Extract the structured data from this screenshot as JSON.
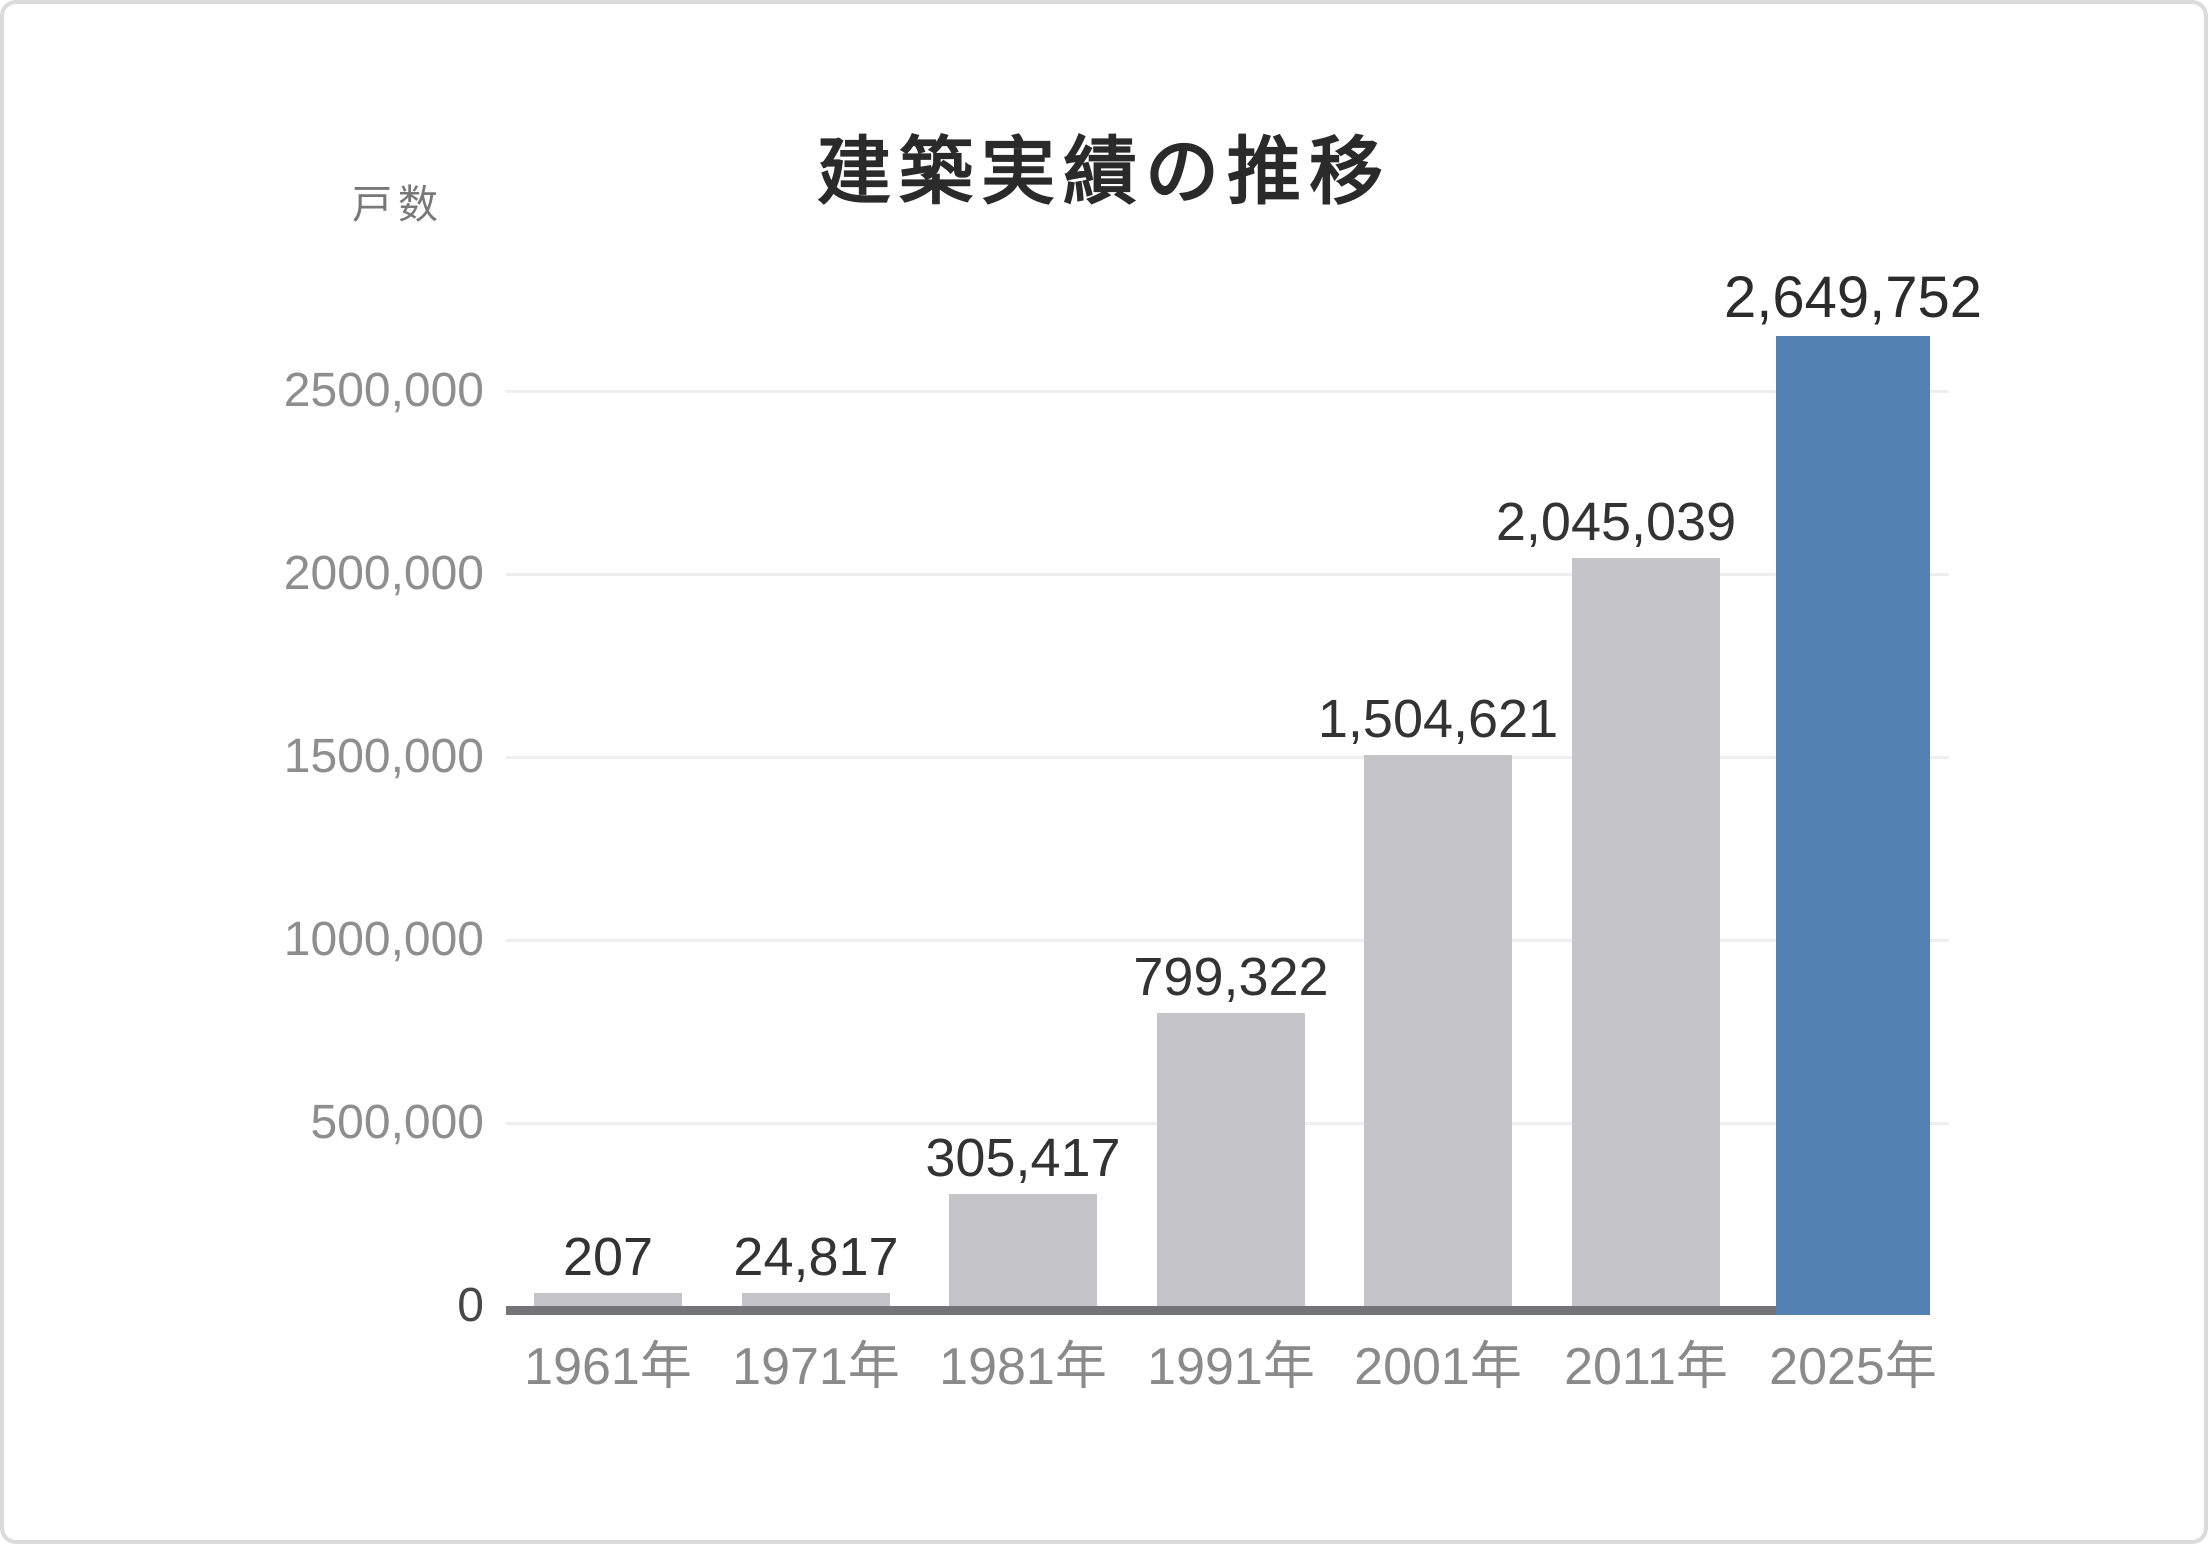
{
  "chart_data": {
    "type": "bar",
    "title": "建築実績の推移",
    "ylabel": "戸数",
    "xlabel": "",
    "categories": [
      "1961年",
      "1971年",
      "1981年",
      "1991年",
      "2001年",
      "2011年",
      "2025年"
    ],
    "values": [
      207,
      24817,
      305417,
      799322,
      1504621,
      2045039,
      2649752
    ],
    "data_labels": [
      "207",
      "24,817",
      "305,417",
      "799,322",
      "1,504,621",
      "2,045,039",
      "2,649,752"
    ],
    "y_tick_labels": [
      "0",
      "500,000",
      "1000,000",
      "1500,000",
      "2000,000",
      "2500,000"
    ],
    "y_tick_values": [
      0,
      500000,
      1000000,
      1500000,
      2000000,
      2500000
    ],
    "ylim": [
      0,
      2800000
    ],
    "grid": true,
    "legend": "none",
    "highlight_index": 6,
    "highlight_category": "2025年",
    "colors": {
      "bar": "#c5c5c7",
      "bar_highlight": "#5381b2",
      "axis_line": "#747476",
      "gridline": "#eeeeee",
      "title_text": "#2a2a2a",
      "data_label_text": "#333333",
      "y_tick_text": "#8e8e8e",
      "zero_tick_text": "#474747",
      "x_tick_text": "#8a8a8a",
      "card_border": "#dbdbdb"
    }
  }
}
